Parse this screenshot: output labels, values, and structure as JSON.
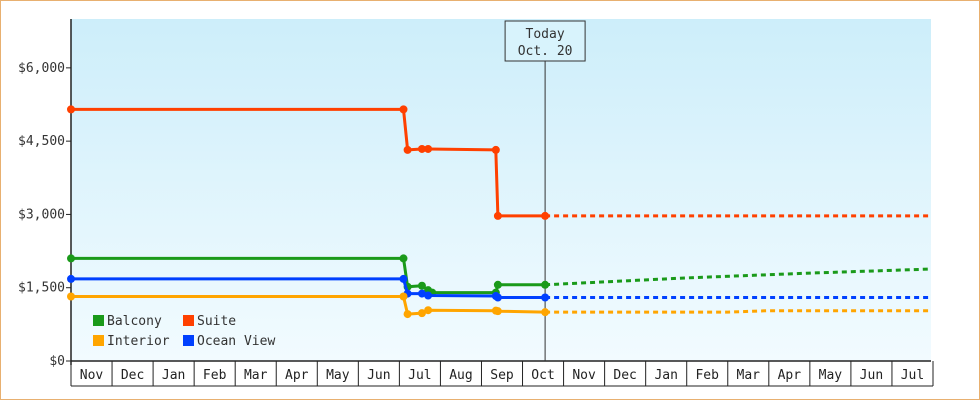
{
  "chart_data": {
    "type": "line",
    "title": "",
    "xlabel": "",
    "ylabel": "",
    "y_ticks": [
      0,
      1500,
      3000,
      4500,
      6000
    ],
    "y_tick_labels": [
      "$0",
      "$1,500",
      "$3,000",
      "$4,500",
      "$6,000"
    ],
    "ylim": [
      0,
      7000
    ],
    "months": [
      "Nov",
      "Dec",
      "Jan",
      "Feb",
      "Mar",
      "Apr",
      "May",
      "Jun",
      "Jul",
      "Aug",
      "Sep",
      "Oct",
      "Nov",
      "Dec",
      "Jan",
      "Feb",
      "Mar",
      "Apr",
      "May",
      "Jun",
      "Jul"
    ],
    "today": {
      "line1": "Today",
      "line2": "Oct. 20",
      "x": 11.55
    },
    "legend": {
      "position": "bottom-left"
    },
    "series": [
      {
        "name": "Suite",
        "color": "#ff4000",
        "points": [
          [
            0,
            5150
          ],
          [
            8.1,
            5150
          ],
          [
            8.2,
            4320
          ],
          [
            8.55,
            4340
          ],
          [
            8.7,
            4340
          ],
          [
            10.35,
            4320
          ],
          [
            10.4,
            2970
          ],
          [
            11.55,
            2970
          ]
        ],
        "projection": [
          [
            11.55,
            2970
          ],
          [
            20.9,
            2970
          ]
        ]
      },
      {
        "name": "Balcony",
        "color": "#1a9a1a",
        "points": [
          [
            0,
            2100
          ],
          [
            8.1,
            2100
          ],
          [
            8.2,
            1520
          ],
          [
            8.55,
            1540
          ],
          [
            8.7,
            1450
          ],
          [
            8.8,
            1400
          ],
          [
            10.35,
            1400
          ],
          [
            10.4,
            1560
          ],
          [
            11.55,
            1560
          ]
        ],
        "projection": [
          [
            11.55,
            1560
          ],
          [
            15,
            1700
          ],
          [
            18,
            1800
          ],
          [
            20.9,
            1880
          ]
        ]
      },
      {
        "name": "Ocean View",
        "color": "#0040ff",
        "points": [
          [
            0,
            1680
          ],
          [
            8.1,
            1680
          ],
          [
            8.2,
            1380
          ],
          [
            8.55,
            1380
          ],
          [
            8.7,
            1340
          ],
          [
            10.35,
            1330
          ],
          [
            10.4,
            1300
          ],
          [
            11.55,
            1300
          ]
        ],
        "projection": [
          [
            11.55,
            1300
          ],
          [
            20.9,
            1300
          ]
        ]
      },
      {
        "name": "Interior",
        "color": "#ffa500",
        "points": [
          [
            0,
            1320
          ],
          [
            8.1,
            1320
          ],
          [
            8.2,
            960
          ],
          [
            8.55,
            980
          ],
          [
            8.7,
            1040
          ],
          [
            10.35,
            1030
          ],
          [
            10.4,
            1020
          ],
          [
            11.55,
            1000
          ]
        ],
        "projection": [
          [
            11.55,
            1000
          ],
          [
            16,
            1000
          ],
          [
            17,
            1030
          ],
          [
            20.9,
            1030
          ]
        ]
      }
    ]
  }
}
